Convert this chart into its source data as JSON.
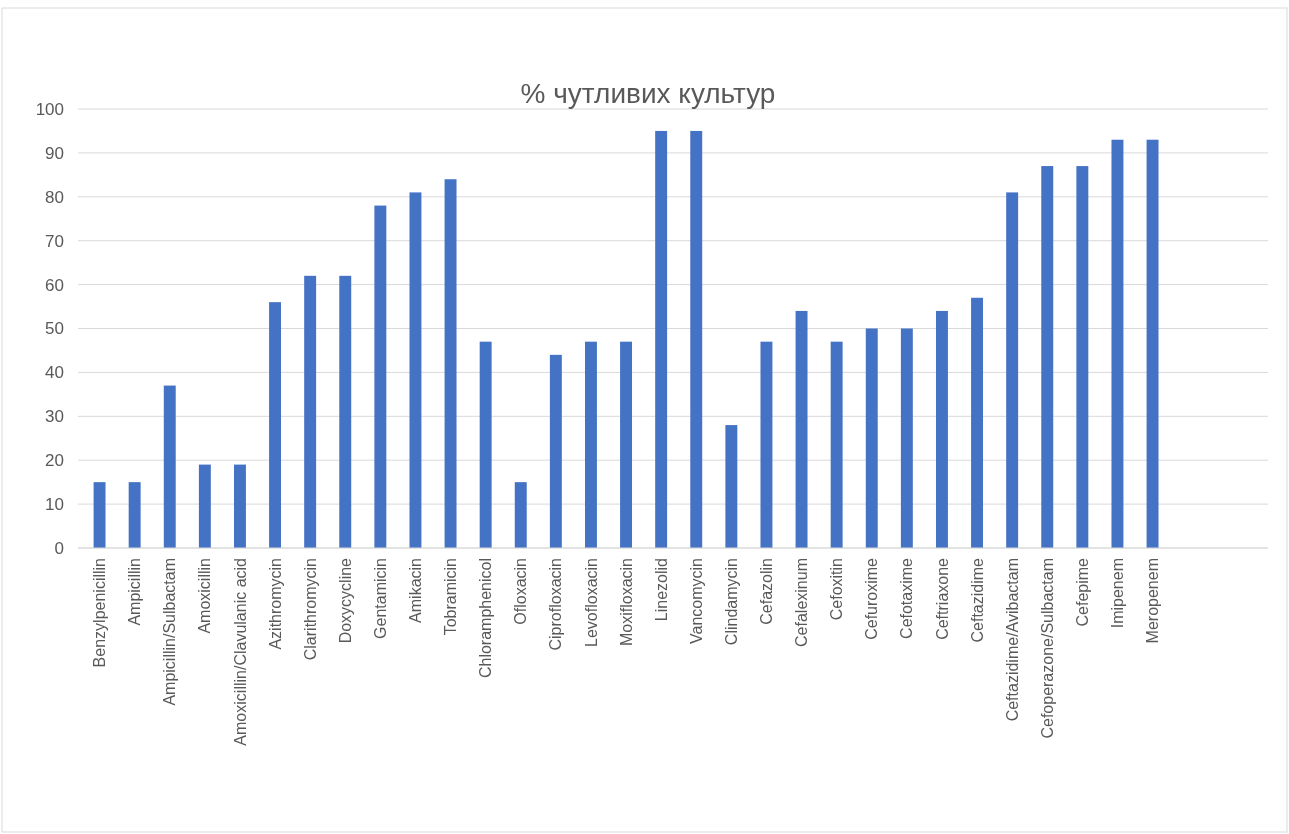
{
  "chart_data": {
    "type": "bar",
    "title": "% чутливих культур",
    "categories": [
      "Benzylpenicillin",
      "Ampicillin",
      "Ampicillin/Sulbactam",
      "Amoxicillin",
      "Amoxicillin/Clavulanic acid",
      "Azithromycin",
      "Clarithromycin",
      "Doxycycline",
      "Gentamicin",
      "Amikacin",
      "Tobramicin",
      "Chloramphenicol",
      "Ofloxacin",
      "Ciprofloxacin",
      "Levofloxacin",
      "Moxifloxacin",
      "Linezolid",
      "Vancomycin",
      "Clindamycin",
      "Cefazolin",
      "Cefalexinum",
      "Cefoxitin",
      "Cefuroxime",
      "Cefotaxime",
      "Ceftriaxone",
      "Ceftazidime",
      "Ceftazidime/Avibactam",
      "Cefoperazone/Sulbactam",
      "Cefepime",
      "Imipenem",
      "Meropenem"
    ],
    "values": [
      15,
      15,
      37,
      19,
      19,
      56,
      62,
      62,
      78,
      81,
      84,
      47,
      15,
      44,
      47,
      47,
      95,
      95,
      28,
      47,
      54,
      47,
      50,
      50,
      54,
      57,
      81,
      87,
      87,
      93,
      93
    ],
    "color": "#4472c4",
    "ylim": [
      0,
      100
    ],
    "yticks": [
      0,
      10,
      20,
      30,
      40,
      50,
      60,
      70,
      80,
      90,
      100
    ],
    "grid": "y"
  }
}
